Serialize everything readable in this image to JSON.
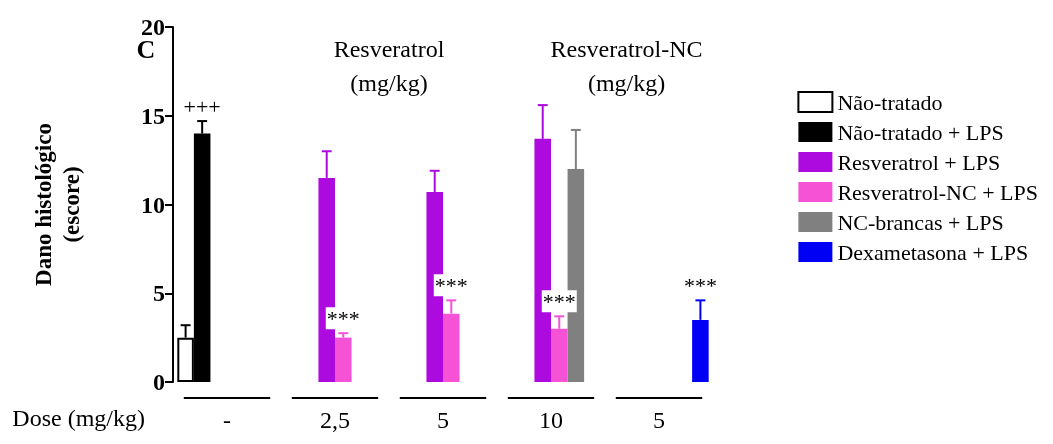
{
  "chart_data": {
    "type": "bar",
    "ylabel": "Dano histológico\n(escore)",
    "xlabel": "Dose (mg/kg)",
    "categories": [
      "-",
      "2,5",
      "5",
      "10",
      "5"
    ],
    "ylim": [
      0,
      20
    ],
    "yticks": [
      0,
      5,
      10,
      15,
      20
    ],
    "grid": false,
    "legend": "right",
    "series": [
      {
        "name": "Não-tratado",
        "color": "#ffffff",
        "values": [
          2.5,
          null,
          null,
          null,
          null
        ],
        "errors": [
          0.7,
          null,
          null,
          null,
          null
        ]
      },
      {
        "name": "Não-tratado + LPS",
        "color": "#000000",
        "values": [
          14.0,
          null,
          null,
          null,
          null
        ],
        "errors": [
          0.7,
          null,
          null,
          null,
          null
        ],
        "value_labels": [
          "+++",
          null,
          null,
          null,
          null
        ]
      },
      {
        "name": "Resveratrol + LPS",
        "color": "#ad0ae0",
        "values": [
          null,
          11.5,
          10.7,
          13.7,
          null
        ],
        "errors": [
          null,
          1.5,
          1.2,
          1.9,
          null
        ]
      },
      {
        "name": "Resveratrol-NC + LPS",
        "color": "#f552d5",
        "values": [
          null,
          2.5,
          3.85,
          3.0,
          null
        ],
        "errors": [
          null,
          0.25,
          0.75,
          0.7,
          null
        ],
        "value_labels": [
          null,
          "***",
          "***",
          "***",
          null
        ]
      },
      {
        "name": "NC-brancas + LPS",
        "color": "#808080",
        "values": [
          null,
          null,
          null,
          12.0,
          null
        ],
        "errors": [
          null,
          null,
          null,
          2.2,
          null
        ]
      },
      {
        "name": "Dexametasona + LPS",
        "color": "#0000f5",
        "values": [
          null,
          null,
          null,
          null,
          3.5
        ],
        "errors": [
          null,
          null,
          null,
          null,
          1.1
        ],
        "value_labels": [
          null,
          null,
          null,
          null,
          "***"
        ]
      }
    ],
    "annotations": [
      "C",
      "Resveratrol\n(mg/kg)",
      "Resveratrol-NC\n(mg/kg)"
    ]
  }
}
